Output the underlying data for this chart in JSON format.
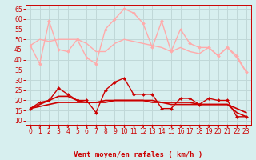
{
  "title": "",
  "xlabel": "Vent moyen/en rafales ( km/h )",
  "ylabel": "",
  "bg_color": "#d7efef",
  "grid_color": "#c0d8d8",
  "xlim": [
    -0.5,
    23.5
  ],
  "ylim": [
    8,
    67
  ],
  "yticks": [
    10,
    15,
    20,
    25,
    30,
    35,
    40,
    45,
    50,
    55,
    60,
    65
  ],
  "xticks": [
    0,
    1,
    2,
    3,
    4,
    5,
    6,
    7,
    8,
    9,
    10,
    11,
    12,
    13,
    14,
    15,
    16,
    17,
    18,
    19,
    20,
    21,
    22,
    23
  ],
  "series": [
    {
      "y": [
        47,
        38,
        59,
        45,
        44,
        50,
        41,
        38,
        55,
        60,
        65,
        63,
        58,
        46,
        59,
        44,
        55,
        48,
        46,
        46,
        42,
        46,
        42,
        34
      ],
      "color": "#ffaaaa",
      "lw": 1.0,
      "marker": "D",
      "ms": 2.0
    },
    {
      "y": [
        47,
        50,
        49,
        50,
        50,
        50,
        48,
        44,
        44,
        48,
        50,
        49,
        48,
        47,
        46,
        44,
        46,
        44,
        43,
        46,
        42,
        46,
        41,
        34
      ],
      "color": "#ffaaaa",
      "lw": 1.0,
      "marker": null,
      "ms": 0
    },
    {
      "y": [
        16,
        19,
        20,
        26,
        23,
        20,
        20,
        14,
        25,
        29,
        31,
        23,
        23,
        23,
        16,
        16,
        21,
        21,
        18,
        21,
        20,
        20,
        12,
        12
      ],
      "color": "#cc0000",
      "lw": 1.0,
      "marker": "D",
      "ms": 2.0
    },
    {
      "y": [
        16,
        17,
        18,
        19,
        19,
        19,
        19,
        19,
        19,
        20,
        20,
        20,
        20,
        20,
        19,
        19,
        19,
        19,
        18,
        18,
        18,
        18,
        16,
        14
      ],
      "color": "#cc0000",
      "lw": 1.2,
      "marker": null,
      "ms": 0
    },
    {
      "y": [
        16,
        18,
        20,
        22,
        22,
        20,
        19,
        19,
        20,
        20,
        20,
        20,
        20,
        19,
        19,
        18,
        18,
        18,
        18,
        18,
        18,
        18,
        14,
        12
      ],
      "color": "#cc0000",
      "lw": 1.2,
      "marker": null,
      "ms": 0
    }
  ],
  "arrow_color": "#cc0000",
  "xlabel_color": "#cc0000",
  "xlabel_fontsize": 6.5,
  "tick_fontsize": 5.5,
  "tick_color": "#cc0000",
  "spine_color": "#cc0000"
}
